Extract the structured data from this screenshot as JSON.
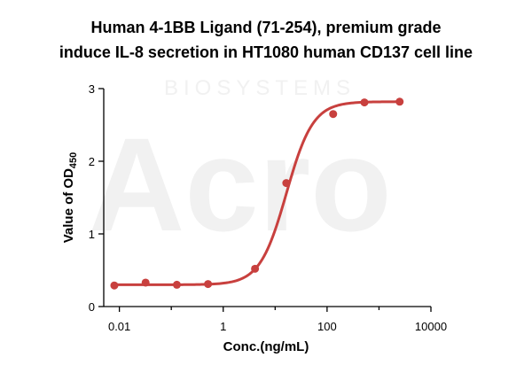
{
  "chart_data": {
    "type": "scatter",
    "title_line1": "Human 4-1BB Ligand (71-254), premium grade",
    "title_line2": "induce IL-8 secretion in HT1080 human CD137 cell line",
    "xlabel": "Conc.(ng/mL)",
    "ylabel_main": "Value of OD",
    "ylabel_sub": "450",
    "x_scale": "log",
    "xlim": [
      0.005,
      10000
    ],
    "ylim": [
      0,
      3
    ],
    "x_ticks": [
      0.01,
      1,
      100,
      10000
    ],
    "x_tick_labels": [
      "0.01",
      "1",
      "100",
      "10000"
    ],
    "y_ticks": [
      0,
      1,
      2,
      3
    ],
    "y_tick_labels": [
      "0",
      "1",
      "2",
      "3"
    ],
    "grid": false,
    "color": "#c8403e",
    "points": [
      {
        "x": 0.008,
        "y": 0.29
      },
      {
        "x": 0.032,
        "y": 0.33
      },
      {
        "x": 0.128,
        "y": 0.3
      },
      {
        "x": 0.51,
        "y": 0.31
      },
      {
        "x": 4.1,
        "y": 0.52
      },
      {
        "x": 16.4,
        "y": 1.7
      },
      {
        "x": 131,
        "y": 2.65
      },
      {
        "x": 524,
        "y": 2.81
      },
      {
        "x": 2500,
        "y": 2.82
      }
    ],
    "fit": {
      "bottom": 0.3,
      "top": 2.82,
      "ec50": 16.5,
      "hill": 1.7
    }
  },
  "watermark": {
    "text": "BIOSYSTEMS",
    "logo": "Acro"
  }
}
